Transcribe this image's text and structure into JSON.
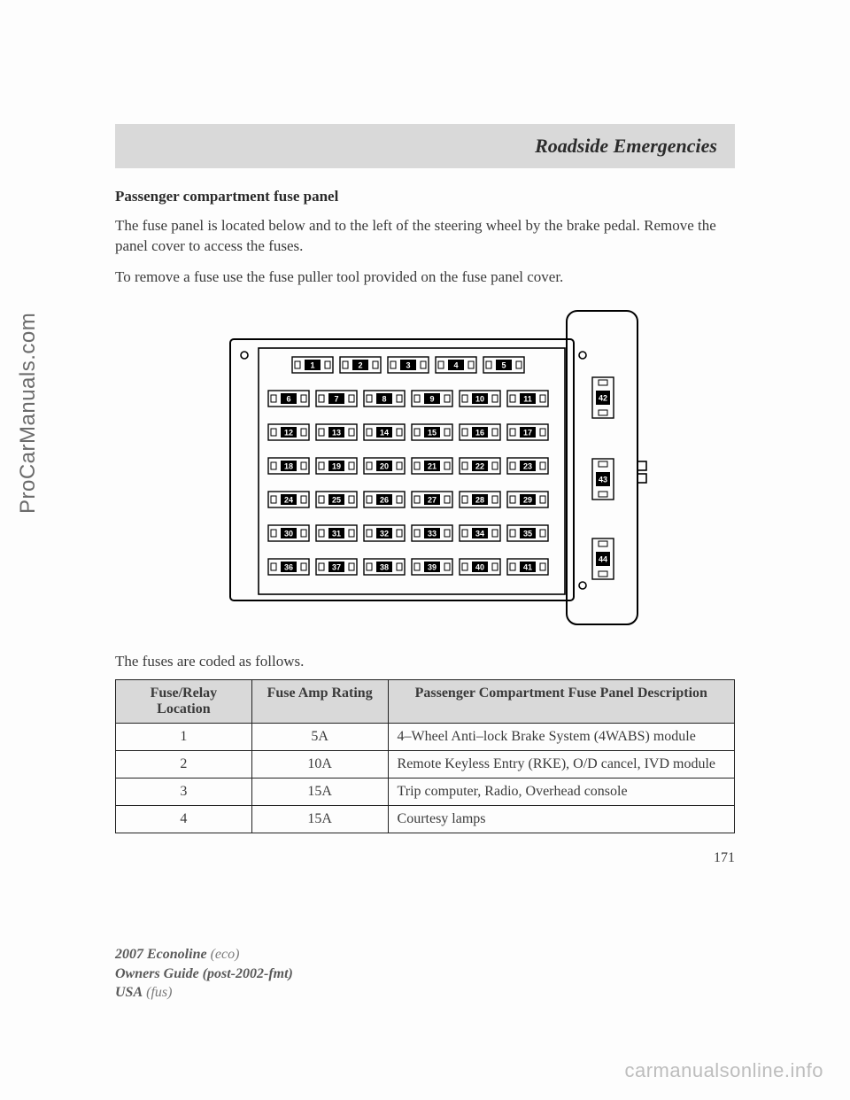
{
  "watermark_side": "ProCarManuals.com",
  "watermark_bottom": "carmanualsonline.info",
  "header": "Roadside Emergencies",
  "subheading": "Passenger compartment fuse panel",
  "para1": "The fuse panel is located below and to the left of the steering wheel by the brake pedal. Remove the panel cover to access the fuses.",
  "para2": "To remove a fuse use the fuse puller tool provided on the fuse panel cover.",
  "lead_in": "The fuses are coded as follows.",
  "page_number": "171",
  "footer": {
    "line1_bold": "2007 Econoline",
    "line1_ital": "(eco)",
    "line2_bold": "Owners Guide (post-2002-fmt)",
    "line3_bold": "USA",
    "line3_ital": "(fus)"
  },
  "table": {
    "headers": [
      "Fuse/Relay Location",
      "Fuse Amp Rating",
      "Passenger Compartment Fuse Panel Description"
    ],
    "col_widths": [
      "22%",
      "22%",
      "56%"
    ],
    "rows": [
      [
        "1",
        "5A",
        "4–Wheel Anti–lock Brake System (4WABS) module"
      ],
      [
        "2",
        "10A",
        "Remote Keyless Entry (RKE), O/D cancel, IVD module"
      ],
      [
        "3",
        "15A",
        "Trip computer, Radio, Overhead console"
      ],
      [
        "4",
        "15A",
        "Courtesy lamps"
      ]
    ]
  },
  "diagram": {
    "outer_stroke": "#000000",
    "fill": "#ffffff",
    "fuse_fill": "#000000",
    "grid": {
      "rows": 7,
      "cols": 6,
      "labels": [
        [
          "1",
          "2",
          "3",
          "4",
          "5",
          ""
        ],
        [
          "6",
          "7",
          "8",
          "9",
          "10",
          "11"
        ],
        [
          "12",
          "13",
          "14",
          "15",
          "16",
          "17"
        ],
        [
          "18",
          "19",
          "20",
          "21",
          "22",
          "23"
        ],
        [
          "24",
          "25",
          "26",
          "27",
          "28",
          "29"
        ],
        [
          "30",
          "31",
          "32",
          "33",
          "34",
          "35"
        ],
        [
          "36",
          "37",
          "38",
          "39",
          "40",
          "41"
        ]
      ]
    },
    "side_fuses": [
      "42",
      "43",
      "44"
    ]
  }
}
